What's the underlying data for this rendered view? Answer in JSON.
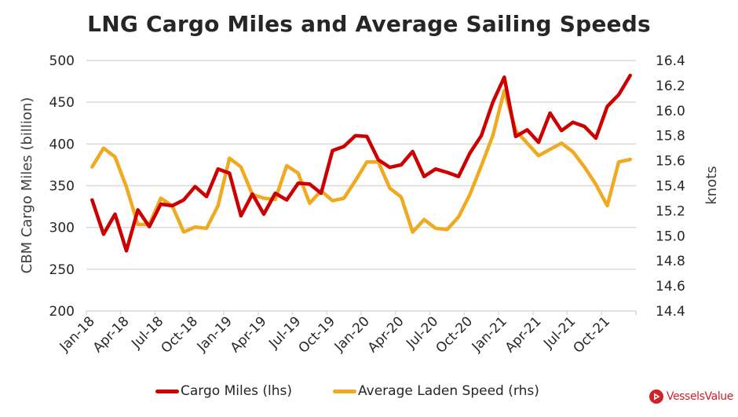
{
  "chart_data": {
    "type": "line",
    "title": "LNG Cargo Miles and Average Sailing Speeds",
    "xlabel": "",
    "ylabel": "CBM Cargo Miles (billion)",
    "y2label": "knots",
    "ylim": [
      200,
      500
    ],
    "y2lim": [
      14.4,
      16.4
    ],
    "yticks": [
      "200",
      "250",
      "300",
      "350",
      "400",
      "450",
      "500"
    ],
    "y2ticks": [
      "14.4",
      "14.6",
      "14.8",
      "15.0",
      "15.2",
      "15.4",
      "15.6",
      "15.8",
      "16.0",
      "16.2",
      "16.4"
    ],
    "grid": true,
    "legend_position": "bottom",
    "x": [
      "Jan-18",
      "Feb-18",
      "Mar-18",
      "Apr-18",
      "May-18",
      "Jun-18",
      "Jul-18",
      "Aug-18",
      "Sep-18",
      "Oct-18",
      "Nov-18",
      "Dec-18",
      "Jan-19",
      "Feb-19",
      "Mar-19",
      "Apr-19",
      "May-19",
      "Jun-19",
      "Jul-19",
      "Aug-19",
      "Sep-19",
      "Oct-19",
      "Nov-19",
      "Dec-19",
      "Jan-20",
      "Feb-20",
      "Mar-20",
      "Apr-20",
      "May-20",
      "Jun-20",
      "Jul-20",
      "Aug-20",
      "Sep-20",
      "Oct-20",
      "Nov-20",
      "Dec-20",
      "Jan-21",
      "Feb-21",
      "Mar-21",
      "Apr-21",
      "May-21",
      "Jun-21",
      "Jul-21",
      "Aug-21",
      "Sep-21",
      "Oct-21",
      "Nov-21",
      "Dec-21"
    ],
    "xtick_labels": [
      "Jan-18",
      "Apr-18",
      "Jul-18",
      "Oct-18",
      "Jan-19",
      "Apr-19",
      "Jul-19",
      "Oct-19",
      "Jan-20",
      "Apr-20",
      "Jul-20",
      "Oct-20",
      "Jan-21",
      "Apr-21",
      "Jul-21",
      "Oct-21"
    ],
    "series": [
      {
        "name": "Cargo Miles (lhs)",
        "axis": "left",
        "color": "#cc0000",
        "values": [
          333,
          292,
          316,
          272,
          321,
          301,
          328,
          326,
          333,
          349,
          337,
          370,
          365,
          314,
          340,
          316,
          341,
          333,
          353,
          352,
          341,
          392,
          397,
          410,
          409,
          381,
          372,
          375,
          391,
          361,
          370,
          366,
          361,
          389,
          410,
          450,
          480,
          409,
          417,
          402,
          437,
          416,
          426,
          421,
          407,
          445,
          459,
          482
        ]
      },
      {
        "name": "Average Laden Speed (rhs)",
        "axis": "right",
        "color": "#f0aa22",
        "values": [
          15.55,
          15.7,
          15.63,
          15.39,
          15.09,
          15.09,
          15.3,
          15.24,
          15.03,
          15.07,
          15.06,
          15.24,
          15.62,
          15.55,
          15.33,
          15.3,
          15.29,
          15.56,
          15.5,
          15.26,
          15.36,
          15.28,
          15.3,
          15.44,
          15.59,
          15.59,
          15.38,
          15.31,
          15.03,
          15.13,
          15.06,
          15.05,
          15.15,
          15.33,
          15.56,
          15.8,
          16.16,
          15.84,
          15.74,
          15.64,
          15.69,
          15.74,
          15.67,
          15.55,
          15.41,
          15.24,
          15.59,
          15.61
        ]
      }
    ]
  },
  "legend": {
    "items": [
      {
        "label": "Cargo Miles (lhs)",
        "color": "#cc0000"
      },
      {
        "label": "Average Laden Speed (rhs)",
        "color": "#f0aa22"
      }
    ]
  },
  "branding": {
    "logo_text": "VesselsValue",
    "logo_color": "#d0202a"
  }
}
